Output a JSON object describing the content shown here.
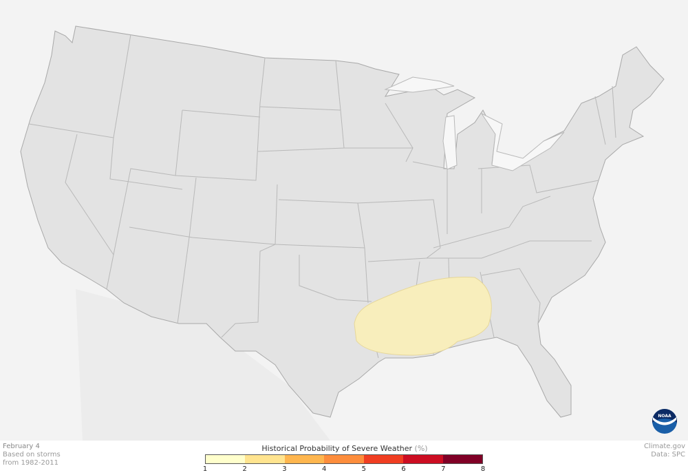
{
  "footer": {
    "date": "February 4",
    "note_line1": "Based on storms",
    "note_line2": "from 1982-2011",
    "credit": "Climate.gov",
    "data_source": "Data: SPC"
  },
  "legend": {
    "title": "Historical Probability of Severe Weather",
    "unit": "(%)",
    "ticks": [
      "1",
      "2",
      "3",
      "4",
      "5",
      "6",
      "7",
      "8"
    ],
    "colors": [
      "#ffffcc",
      "#ffe48f",
      "#feb64f",
      "#fd8d3c",
      "#f03e22",
      "#cc0d22",
      "#800026"
    ]
  },
  "map": {
    "land_color": "#e3e3e3",
    "background_color": "#f3f3f3",
    "highlight_region_level": "1-2%",
    "highlight_color": "#f8eebc",
    "logo": "NOAA"
  }
}
